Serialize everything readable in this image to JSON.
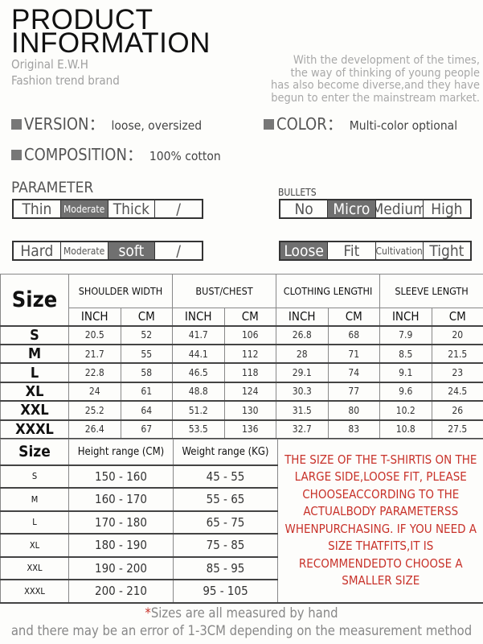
{
  "header": {
    "title_line1": "PRODUCT",
    "title_line2": "INFORMATION",
    "brand_line1": "Original E.W.H",
    "brand_line2": "Fashion trend brand",
    "intro": [
      "With the development of the times,",
      "the way of thinking of young people",
      "has also become diverse,and they have",
      "begun to enter the mainstream market."
    ]
  },
  "features": {
    "version": {
      "label": "VERSION：",
      "value": "loose, oversized"
    },
    "color": {
      "label": "COLOR：",
      "value": "Multi-color optional"
    },
    "composition": {
      "label": "COMPOSITION：",
      "value": "100% cotton"
    }
  },
  "parameters": {
    "title": "PARAMETER",
    "bullets_title": "BULLETS",
    "selected_color": "#707070",
    "thickness": {
      "options": [
        "Thin",
        "Moderate",
        "Thick",
        "/"
      ],
      "selected": "Moderate"
    },
    "softness": {
      "options": [
        "Hard",
        "Moderate",
        "soft",
        "/"
      ],
      "selected": "soft"
    },
    "elasticity": {
      "options": [
        "No",
        "Micro",
        "Medium",
        "High"
      ],
      "selected": "Micro"
    },
    "fit": {
      "options": [
        "Loose",
        "Fit",
        "Cultivation",
        "Tight"
      ],
      "selected": "Loose"
    }
  },
  "size_chart": {
    "size_header": "Size",
    "columns": [
      "SHOULDER WIDTH",
      "BUST/CHEST",
      "CLOTHING LENGTHI",
      "SLEEVE LENGTH"
    ],
    "units": [
      "INCH",
      "CM"
    ],
    "rows": [
      {
        "size": "S",
        "values": [
          "20.5",
          "52",
          "41.7",
          "106",
          "26.8",
          "68",
          "7.9",
          "20"
        ]
      },
      {
        "size": "M",
        "values": [
          "21.7",
          "55",
          "44.1",
          "112",
          "28",
          "71",
          "8.5",
          "21.5"
        ]
      },
      {
        "size": "L",
        "values": [
          "22.8",
          "58",
          "46.5",
          "118",
          "29.1",
          "74",
          "9.1",
          "23"
        ]
      },
      {
        "size": "XL",
        "values": [
          "24",
          "61",
          "48.8",
          "124",
          "30.3",
          "77",
          "9.6",
          "24.5"
        ]
      },
      {
        "size": "XXL",
        "values": [
          "25.2",
          "64",
          "51.2",
          "130",
          "31.5",
          "80",
          "10.2",
          "26"
        ]
      },
      {
        "size": "XXXL",
        "values": [
          "26.4",
          "67",
          "53.5",
          "136",
          "32.7",
          "83",
          "10.8",
          "27.5"
        ]
      }
    ]
  },
  "fit_chart": {
    "size_header": "Size",
    "height_header": "Height range (CM)",
    "weight_header": "Weight range (KG)",
    "rows": [
      {
        "size": "S",
        "height": "150 - 160",
        "weight": "45 - 55"
      },
      {
        "size": "M",
        "height": "160 - 170",
        "weight": "55 - 65"
      },
      {
        "size": "L",
        "height": "170 - 180",
        "weight": "65 - 75"
      },
      {
        "size": "XL",
        "height": "180 - 190",
        "weight": "75 - 85"
      },
      {
        "size": "XXL",
        "height": "190 - 200",
        "weight": "85 - 95"
      },
      {
        "size": "XXXL",
        "height": "200 - 210",
        "weight": "95 - 105"
      }
    ],
    "note": "THE SIZE OF THE T-SHIRTIS ON THE LARGE SIDE,LOOSE FIT, PLEASE CHOOSEACCORDING TO THE ACTUALBODY PARAMETERSS WHENPURCHASING. IF YOU NEED A SIZE THATFITS,IT IS RECOMMENDEDTO CHOOSE A SMALLER SIZE",
    "note_color": "#c8322a"
  },
  "footer": {
    "star": "*",
    "line1": "Sizes are all measured by hand",
    "line2": "and there may be an error of 1-3CM depending on the measurement method"
  }
}
